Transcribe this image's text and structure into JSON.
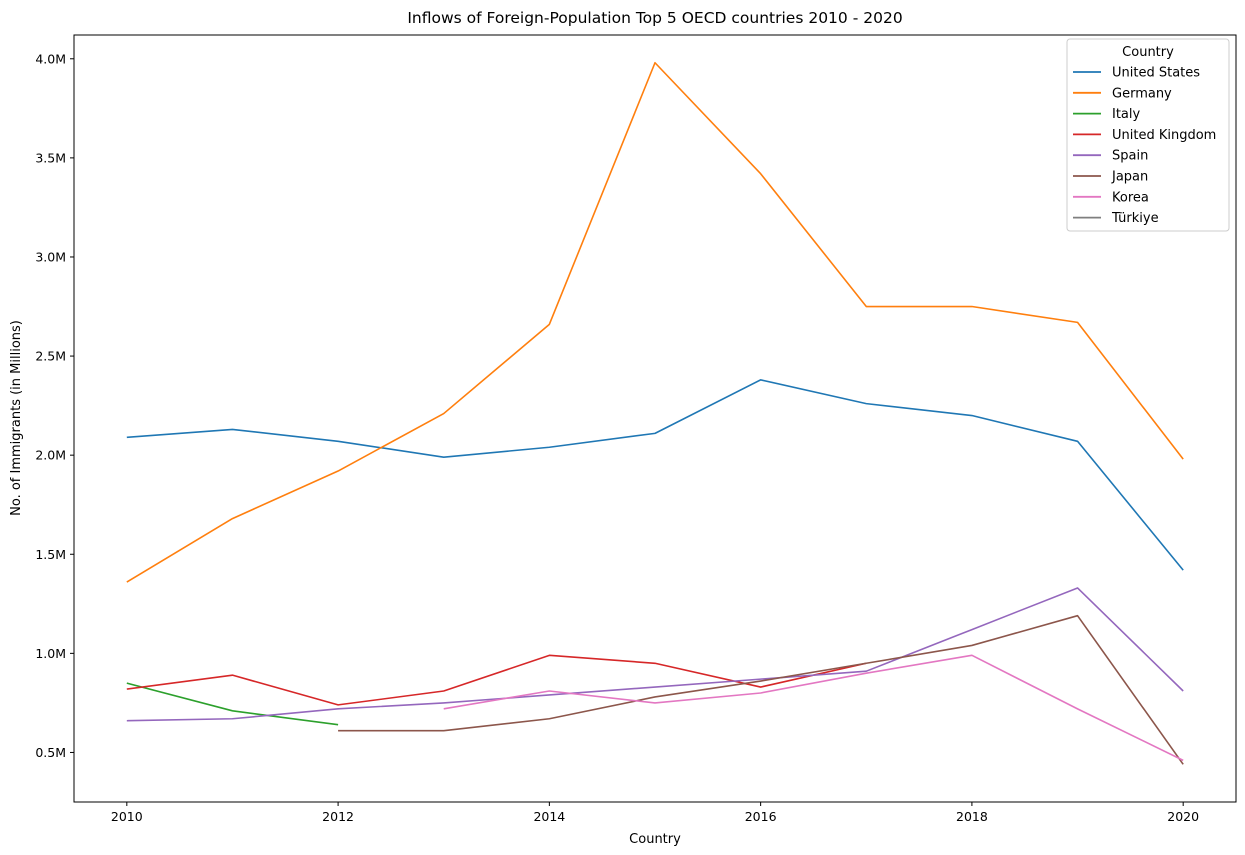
{
  "chart_data": {
    "type": "line",
    "title": "Inflows of Foreign-Population Top 5 OECD countries 2010 - 2020",
    "xlabel": "Country",
    "ylabel": "No. of Immigrants (in Millions)",
    "x": [
      2010,
      2011,
      2012,
      2013,
      2014,
      2015,
      2016,
      2017,
      2018,
      2019,
      2020
    ],
    "xticks": [
      2010,
      2012,
      2014,
      2016,
      2018,
      2020
    ],
    "xlim": [
      2009.5,
      2020.5
    ],
    "ylim": [
      0.25,
      4.12
    ],
    "yticks": [
      0.5,
      1.0,
      1.5,
      2.0,
      2.5,
      3.0,
      3.5,
      4.0
    ],
    "ytick_labels": [
      "0.5M",
      "1.0M",
      "1.5M",
      "2.0M",
      "2.5M",
      "3.0M",
      "3.5M",
      "4.0M"
    ],
    "grid": false,
    "legend_title": "Country",
    "legend_position": "top-right",
    "series": [
      {
        "name": "United States",
        "color": "#1f77b4",
        "values": [
          2.09,
          2.13,
          2.07,
          1.99,
          2.04,
          2.11,
          2.38,
          2.26,
          2.2,
          2.07,
          1.42
        ]
      },
      {
        "name": "Germany",
        "color": "#ff7f0e",
        "values": [
          1.36,
          1.68,
          1.92,
          2.21,
          2.66,
          3.98,
          3.42,
          2.75,
          2.75,
          2.67,
          1.98
        ]
      },
      {
        "name": "Italy",
        "color": "#2ca02c",
        "values": [
          0.85,
          0.71,
          0.64,
          null,
          null,
          null,
          null,
          null,
          null,
          null,
          null
        ]
      },
      {
        "name": "United Kingdom",
        "color": "#d62728",
        "values": [
          0.82,
          0.89,
          0.74,
          0.81,
          0.99,
          0.95,
          0.83,
          0.95,
          null,
          null,
          null
        ]
      },
      {
        "name": "Spain",
        "color": "#9467bd",
        "values": [
          0.66,
          0.67,
          0.72,
          0.75,
          0.79,
          0.83,
          0.87,
          0.91,
          1.12,
          1.33,
          0.81
        ]
      },
      {
        "name": "Japan",
        "color": "#8c564b",
        "values": [
          null,
          null,
          0.61,
          0.61,
          0.67,
          0.78,
          0.86,
          0.95,
          1.04,
          1.19,
          0.44
        ]
      },
      {
        "name": "Korea",
        "color": "#e377c2",
        "values": [
          null,
          null,
          null,
          0.72,
          0.81,
          0.75,
          0.8,
          0.9,
          0.99,
          0.72,
          0.46
        ]
      },
      {
        "name": "Türkiye",
        "color": "#7f7f7f",
        "values": [
          null,
          null,
          null,
          null,
          null,
          null,
          null,
          null,
          null,
          null,
          null
        ]
      }
    ]
  }
}
